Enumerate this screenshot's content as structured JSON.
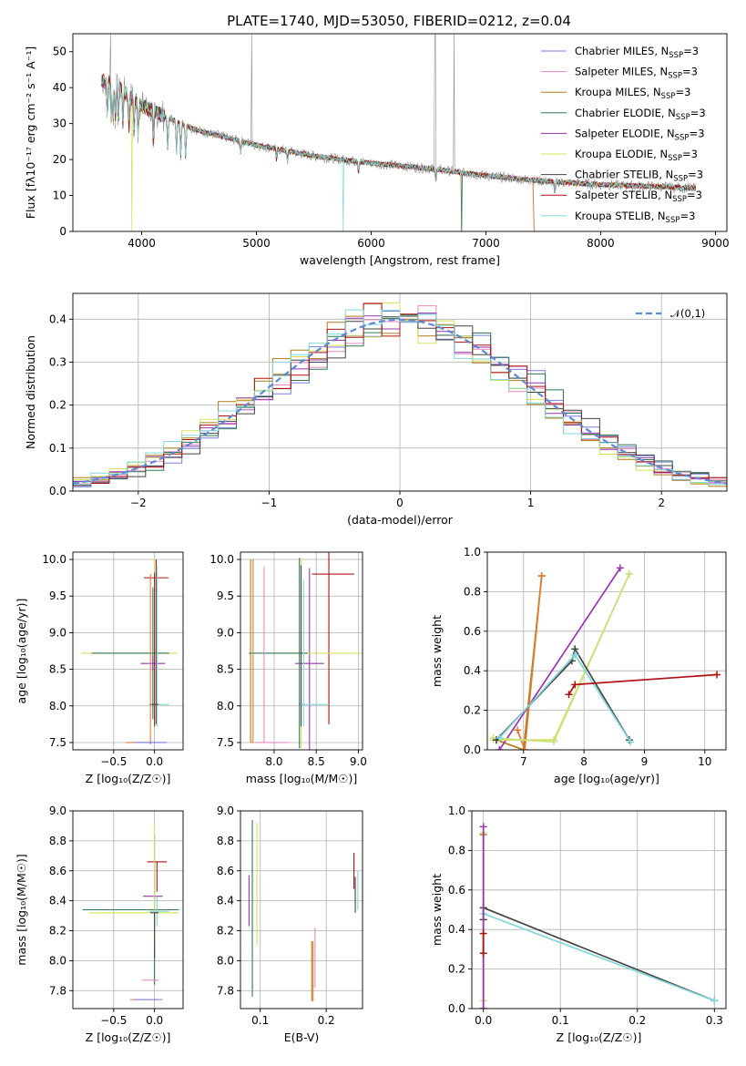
{
  "figure": {
    "title": "PLATE=1740, MJD=53050, FIBERID=0212, z=0.04"
  },
  "colors": {
    "Chabrier MILES": "#7b7fe0",
    "Salpeter MILES": "#e68ac0",
    "Kroupa MILES": "#b07a10",
    "Chabrier ELODIE": "#2f7a52",
    "Salpeter ELODIE": "#9a33b0",
    "Kroupa ELODIE": "#d8e05a",
    "Chabrier STELIB": "#444444",
    "Salpeter STELIB": "#b01010",
    "Kroupa STELIB": "#80d8d8",
    "orange": "#e07a30",
    "lime": "#c8e080",
    "dashed": "#5a8ad8"
  },
  "chart_data": [
    {
      "id": "spectrum",
      "type": "line",
      "title": "PLATE=1740, MJD=53050, FIBERID=0212, z=0.04",
      "xlabel": "wavelength [Angstrom, rest frame]",
      "ylabel": "Flux [fλ10⁻¹⁷ erg cm⁻² s⁻¹ A⁻¹]",
      "xlim": [
        3400,
        9100
      ],
      "ylim": [
        0,
        55
      ],
      "xticks": [
        4000,
        5000,
        6000,
        7000,
        8000,
        9000
      ],
      "yticks": [
        0,
        10,
        20,
        30,
        40,
        50
      ],
      "legend": "upper-right",
      "series": [
        {
          "name": "Chabrier MILES, N_SSP=3"
        },
        {
          "name": "Salpeter MILES, N_SSP=3"
        },
        {
          "name": "Kroupa MILES, N_SSP=3"
        },
        {
          "name": "Chabrier ELODIE, N_SSP=3"
        },
        {
          "name": "Salpeter ELODIE, N_SSP=3"
        },
        {
          "name": "Kroupa ELODIE, N_SSP=3"
        },
        {
          "name": "Chabrier STELIB, N_SSP=3"
        },
        {
          "name": "Salpeter STELIB, N_SSP=3"
        },
        {
          "name": "Kroupa STELIB, N_SSP=3"
        }
      ],
      "continuum": {
        "x": [
          3650,
          3800,
          4000,
          4200,
          4500,
          5000,
          5500,
          6000,
          6500,
          7000,
          7500,
          8000,
          8500,
          8830
        ],
        "y": [
          42,
          40,
          35,
          32,
          28,
          24,
          21,
          19,
          17.5,
          15.5,
          14,
          13,
          12.5,
          12
        ]
      }
    },
    {
      "id": "residuals",
      "type": "step",
      "xlabel": "(data-model)/error",
      "ylabel": "Normed distribution",
      "xlim": [
        -2.5,
        2.5
      ],
      "ylim": [
        0,
        0.46
      ],
      "xticks": [
        -2,
        -1,
        0,
        1,
        2
      ],
      "yticks": [
        0.0,
        0.1,
        0.2,
        0.3,
        0.4
      ],
      "grid": true,
      "legend": "upper-right",
      "reference": {
        "name": "𝒩(0,1)",
        "style": "dashed"
      }
    },
    {
      "id": "z-age",
      "type": "errorbar",
      "xlabel": "Z [log₁₀(Z/Z☉)]",
      "ylabel": "age  [log₁₀(age/yr)]",
      "xlim": [
        -1.0,
        0.35
      ],
      "ylim": [
        7.4,
        10.1
      ],
      "xticks": [
        -0.5,
        0.0
      ],
      "yticks": [
        7.5,
        8.0,
        8.5,
        9.0,
        9.5,
        10.0
      ],
      "grid": true,
      "points": [
        {
          "series": "Salpeter STELIB",
          "x": 0.02,
          "y": 9.75,
          "xerr": [
            0.15,
            0.15
          ],
          "yerr": [
            2.0,
            0.25
          ]
        },
        {
          "series": "Kroupa ELODIE",
          "x": 0.0,
          "y": 8.72,
          "xerr": [
            0.9,
            0.28
          ],
          "yerr": [
            1.0,
            1.3
          ]
        },
        {
          "series": "Chabrier ELODIE",
          "x": -0.02,
          "y": 8.72,
          "xerr": [
            0.75,
            0.2
          ],
          "yerr": [
            0.9,
            0.9
          ]
        },
        {
          "series": "Salpeter ELODIE",
          "x": -0.02,
          "y": 8.58,
          "xerr": [
            0.15,
            0.15
          ],
          "yerr": [
            0.1,
            0.1
          ]
        },
        {
          "series": "Kroupa STELIB",
          "x": 0.03,
          "y": 8.02,
          "xerr": [
            0.1,
            0.15
          ],
          "yerr": [
            0.3,
            1.9
          ]
        },
        {
          "series": "Chabrier STELIB",
          "x": 0.0,
          "y": 8.02,
          "xerr": [
            0.05,
            0.05
          ],
          "yerr": [
            0.3,
            1.8
          ]
        },
        {
          "series": "orange",
          "x": -0.05,
          "y": 7.5,
          "xerr": [
            0.3,
            0.1
          ],
          "yerr": [
            0.02,
            2.3
          ]
        },
        {
          "series": "Chabrier MILES",
          "x": -0.05,
          "y": 7.5,
          "xerr": [
            0.2,
            0.2
          ],
          "yerr": [
            0.02,
            0.02
          ]
        }
      ]
    },
    {
      "id": "mass-age",
      "type": "errorbar",
      "xlabel": "mass [log₁₀(M/M☉)]",
      "ylabel": "",
      "xlim": [
        7.6,
        9.05
      ],
      "ylim": [
        7.4,
        10.1
      ],
      "xticks": [
        8.0,
        8.5,
        9.0
      ],
      "yticks": [
        7.5,
        8.0,
        8.5,
        9.0,
        9.5,
        10.0
      ],
      "grid": true,
      "points": [
        {
          "series": "Salpeter STELIB",
          "x": 8.65,
          "y": 9.8,
          "xerr": [
            0.2,
            0.3
          ],
          "yerr": [
            2.05,
            0.3
          ]
        },
        {
          "series": "Salpeter ELODIE",
          "x": 8.42,
          "y": 8.58,
          "xerr": [
            0.17,
            0.17
          ],
          "yerr": [
            1.3,
            1.3
          ]
        },
        {
          "series": "Kroupa ELODIE",
          "x": 8.32,
          "y": 8.72,
          "xerr": [
            0.35,
            0.72
          ],
          "yerr": [
            1.3,
            1.3
          ]
        },
        {
          "series": "Chabrier ELODIE",
          "x": 8.3,
          "y": 8.72,
          "xerr": [
            0.6,
            0.1
          ],
          "yerr": [
            1.3,
            1.3
          ]
        },
        {
          "series": "Chabrier STELIB",
          "x": 8.32,
          "y": 8.02,
          "xerr": [
            0.02,
            0.02
          ],
          "yerr": [
            0.3,
            1.9
          ]
        },
        {
          "series": "Kroupa STELIB",
          "x": 8.35,
          "y": 8.02,
          "xerr": [
            0.04,
            0.3
          ],
          "yerr": [
            0.3,
            1.7
          ]
        },
        {
          "series": "Salpeter MILES",
          "x": 7.88,
          "y": 7.5,
          "xerr": [
            0.1,
            0.3
          ],
          "yerr": [
            0.0,
            2.4
          ]
        },
        {
          "series": "orange",
          "x": 7.75,
          "y": 7.5,
          "xerr": [
            0.03,
            0.0
          ],
          "yerr": [
            0.0,
            2.5
          ]
        },
        {
          "series": "Kroupa MILES",
          "x": 7.72,
          "y": 7.5,
          "xerr": [
            0.0,
            0.0
          ],
          "yerr": [
            0.0,
            2.5
          ]
        }
      ]
    },
    {
      "id": "age-weight",
      "type": "line",
      "xlabel": "age  [log₁₀(age/yr)]",
      "ylabel": "mass weight",
      "xlim": [
        6.4,
        10.35
      ],
      "ylim": [
        0.0,
        1.0
      ],
      "xticks": [
        7,
        8,
        9,
        10
      ],
      "yticks": [
        0.0,
        0.2,
        0.4,
        0.6,
        0.8,
        1.0
      ],
      "grid": true,
      "series": [
        {
          "color": "Kroupa MILES",
          "x": [
            6.55,
            7.0,
            7.3
          ],
          "y": [
            0.05,
            0.0,
            0.88
          ]
        },
        {
          "color": "orange",
          "x": [
            6.9,
            7.02,
            7.3
          ],
          "y": [
            0.1,
            0.0,
            0.88
          ]
        },
        {
          "color": "Salpeter ELODIE",
          "x": [
            6.6,
            8.6
          ],
          "y": [
            0.0,
            0.92
          ]
        },
        {
          "color": "Kroupa ELODIE",
          "x": [
            6.5,
            7.5,
            8.75
          ],
          "y": [
            0.05,
            0.05,
            0.89
          ]
        },
        {
          "color": "lime",
          "x": [
            6.5,
            7.5,
            8.75
          ],
          "y": [
            0.06,
            0.04,
            0.89
          ]
        },
        {
          "color": "Chabrier STELIB",
          "x": [
            6.55,
            7.8,
            7.85,
            8.75
          ],
          "y": [
            0.05,
            0.45,
            0.51,
            0.05
          ]
        },
        {
          "color": "Kroupa STELIB",
          "x": [
            6.6,
            7.85,
            8.77
          ],
          "y": [
            0.06,
            0.48,
            0.04
          ]
        },
        {
          "color": "Salpeter STELIB",
          "x": [
            7.75,
            7.85,
            10.2
          ],
          "y": [
            0.28,
            0.33,
            0.38
          ]
        }
      ]
    },
    {
      "id": "z-mass",
      "type": "errorbar",
      "xlabel": "Z [log₁₀(Z/Z☉)]",
      "ylabel": "mass [log₁₀(M/M☉)]",
      "xlim": [
        -1.0,
        0.35
      ],
      "ylim": [
        7.68,
        9.0
      ],
      "xticks": [
        -0.5,
        0.0
      ],
      "yticks": [
        7.8,
        8.0,
        8.2,
        8.4,
        8.6,
        8.8,
        9.0
      ],
      "grid": true,
      "points": [
        {
          "series": "Salpeter STELIB",
          "x": 0.03,
          "y": 8.66,
          "xerr": [
            0.12,
            0.12
          ],
          "yerr": [
            0.2,
            0.0
          ]
        },
        {
          "series": "Salpeter ELODIE",
          "x": -0.02,
          "y": 8.43,
          "xerr": [
            0.12,
            0.12
          ],
          "yerr": [
            0.0,
            0.0
          ]
        },
        {
          "series": "Chabrier ELODIE",
          "x": 0.0,
          "y": 8.34,
          "xerr": [
            0.88,
            0.3
          ],
          "yerr": [
            0.5,
            0.5
          ]
        },
        {
          "series": "Kroupa ELODIE",
          "x": 0.0,
          "y": 8.32,
          "xerr": [
            0.8,
            0.3
          ],
          "yerr": [
            0.2,
            0.6
          ]
        },
        {
          "series": "Kroupa STELIB",
          "x": 0.03,
          "y": 8.33,
          "xerr": [
            0.1,
            0.15
          ],
          "yerr": [
            0.1,
            0.1
          ]
        },
        {
          "series": "Chabrier STELIB",
          "x": 0.0,
          "y": 8.32,
          "xerr": [
            0.05,
            0.05
          ],
          "yerr": [
            0.3,
            0.0
          ]
        },
        {
          "series": "Salpeter MILES",
          "x": -0.05,
          "y": 7.87,
          "xerr": [
            0.1,
            0.1
          ],
          "yerr": [
            0.0,
            0.0
          ]
        },
        {
          "series": "orange",
          "x": -0.05,
          "y": 7.74,
          "xerr": [
            0.25,
            0.1
          ],
          "yerr": [
            0.0,
            0.0
          ]
        },
        {
          "series": "Chabrier MILES",
          "x": -0.05,
          "y": 7.74,
          "xerr": [
            0.2,
            0.15
          ],
          "yerr": [
            0.0,
            0.0
          ]
        }
      ]
    },
    {
      "id": "ebv-mass",
      "type": "errorbar",
      "xlabel": "E(B-V)",
      "ylabel": "",
      "xlim": [
        0.07,
        0.255
      ],
      "ylim": [
        7.68,
        9.0
      ],
      "xticks": [
        0.1,
        0.2
      ],
      "yticks": [
        7.8,
        8.0,
        8.2,
        8.4,
        8.6,
        8.8,
        9.0
      ],
      "grid": true,
      "points": [
        {
          "series": "Salpeter ELODIE",
          "x": 0.083,
          "y": 8.4,
          "yerr": [
            0.17,
            0.17
          ]
        },
        {
          "series": "Chabrier ELODIE",
          "x": 0.088,
          "y": 8.34,
          "yerr": [
            0.58,
            0.6
          ]
        },
        {
          "series": "Kroupa ELODIE",
          "x": 0.095,
          "y": 8.5,
          "yerr": [
            0.4,
            0.42
          ]
        },
        {
          "series": "Kroupa MILES",
          "x": 0.178,
          "y": 7.93,
          "yerr": [
            0.2,
            0.2
          ]
        },
        {
          "series": "orange",
          "x": 0.18,
          "y": 7.93,
          "yerr": [
            0.2,
            0.2
          ]
        },
        {
          "series": "Salpeter MILES",
          "x": 0.183,
          "y": 8.02,
          "yerr": [
            0.2,
            0.2
          ]
        },
        {
          "series": "Salpeter STELIB",
          "x": 0.242,
          "y": 8.6,
          "yerr": [
            0.12,
            0.12
          ]
        },
        {
          "series": "Chabrier STELIB",
          "x": 0.244,
          "y": 8.44,
          "yerr": [
            0.12,
            0.12
          ]
        },
        {
          "series": "Kroupa STELIB",
          "x": 0.248,
          "y": 8.47,
          "yerr": [
            0.13,
            0.13
          ]
        }
      ]
    },
    {
      "id": "z-weight",
      "type": "line",
      "xlabel": "Z [log₁₀(Z/Z☉)]",
      "ylabel": "mass weight",
      "xlim": [
        -0.015,
        0.315
      ],
      "ylim": [
        0.0,
        1.0
      ],
      "xticks": [
        0.0,
        0.1,
        0.2,
        0.3
      ],
      "yticks": [
        0.0,
        0.2,
        0.4,
        0.6,
        0.8,
        1.0
      ],
      "grid": true,
      "series": [
        {
          "color": "Chabrier STELIB",
          "x": [
            0.0,
            0.0,
            0.3
          ],
          "y": [
            0.45,
            0.51,
            0.04
          ]
        },
        {
          "color": "Kroupa STELIB",
          "x": [
            0.0,
            0.3
          ],
          "y": [
            0.48,
            0.04
          ]
        },
        {
          "color": "lime",
          "x": [
            0.0,
            0.0
          ],
          "y": [
            0.04,
            0.89
          ]
        },
        {
          "color": "Kroupa MILES",
          "x": [
            0.0,
            0.0
          ],
          "y": [
            0.0,
            0.88
          ]
        },
        {
          "color": "Salpeter ELODIE",
          "x": [
            0.0,
            0.0
          ],
          "y": [
            0.0,
            0.92
          ]
        },
        {
          "color": "Salpeter STELIB",
          "x": [
            0.0,
            0.0
          ],
          "y": [
            0.28,
            0.38
          ]
        }
      ]
    }
  ]
}
